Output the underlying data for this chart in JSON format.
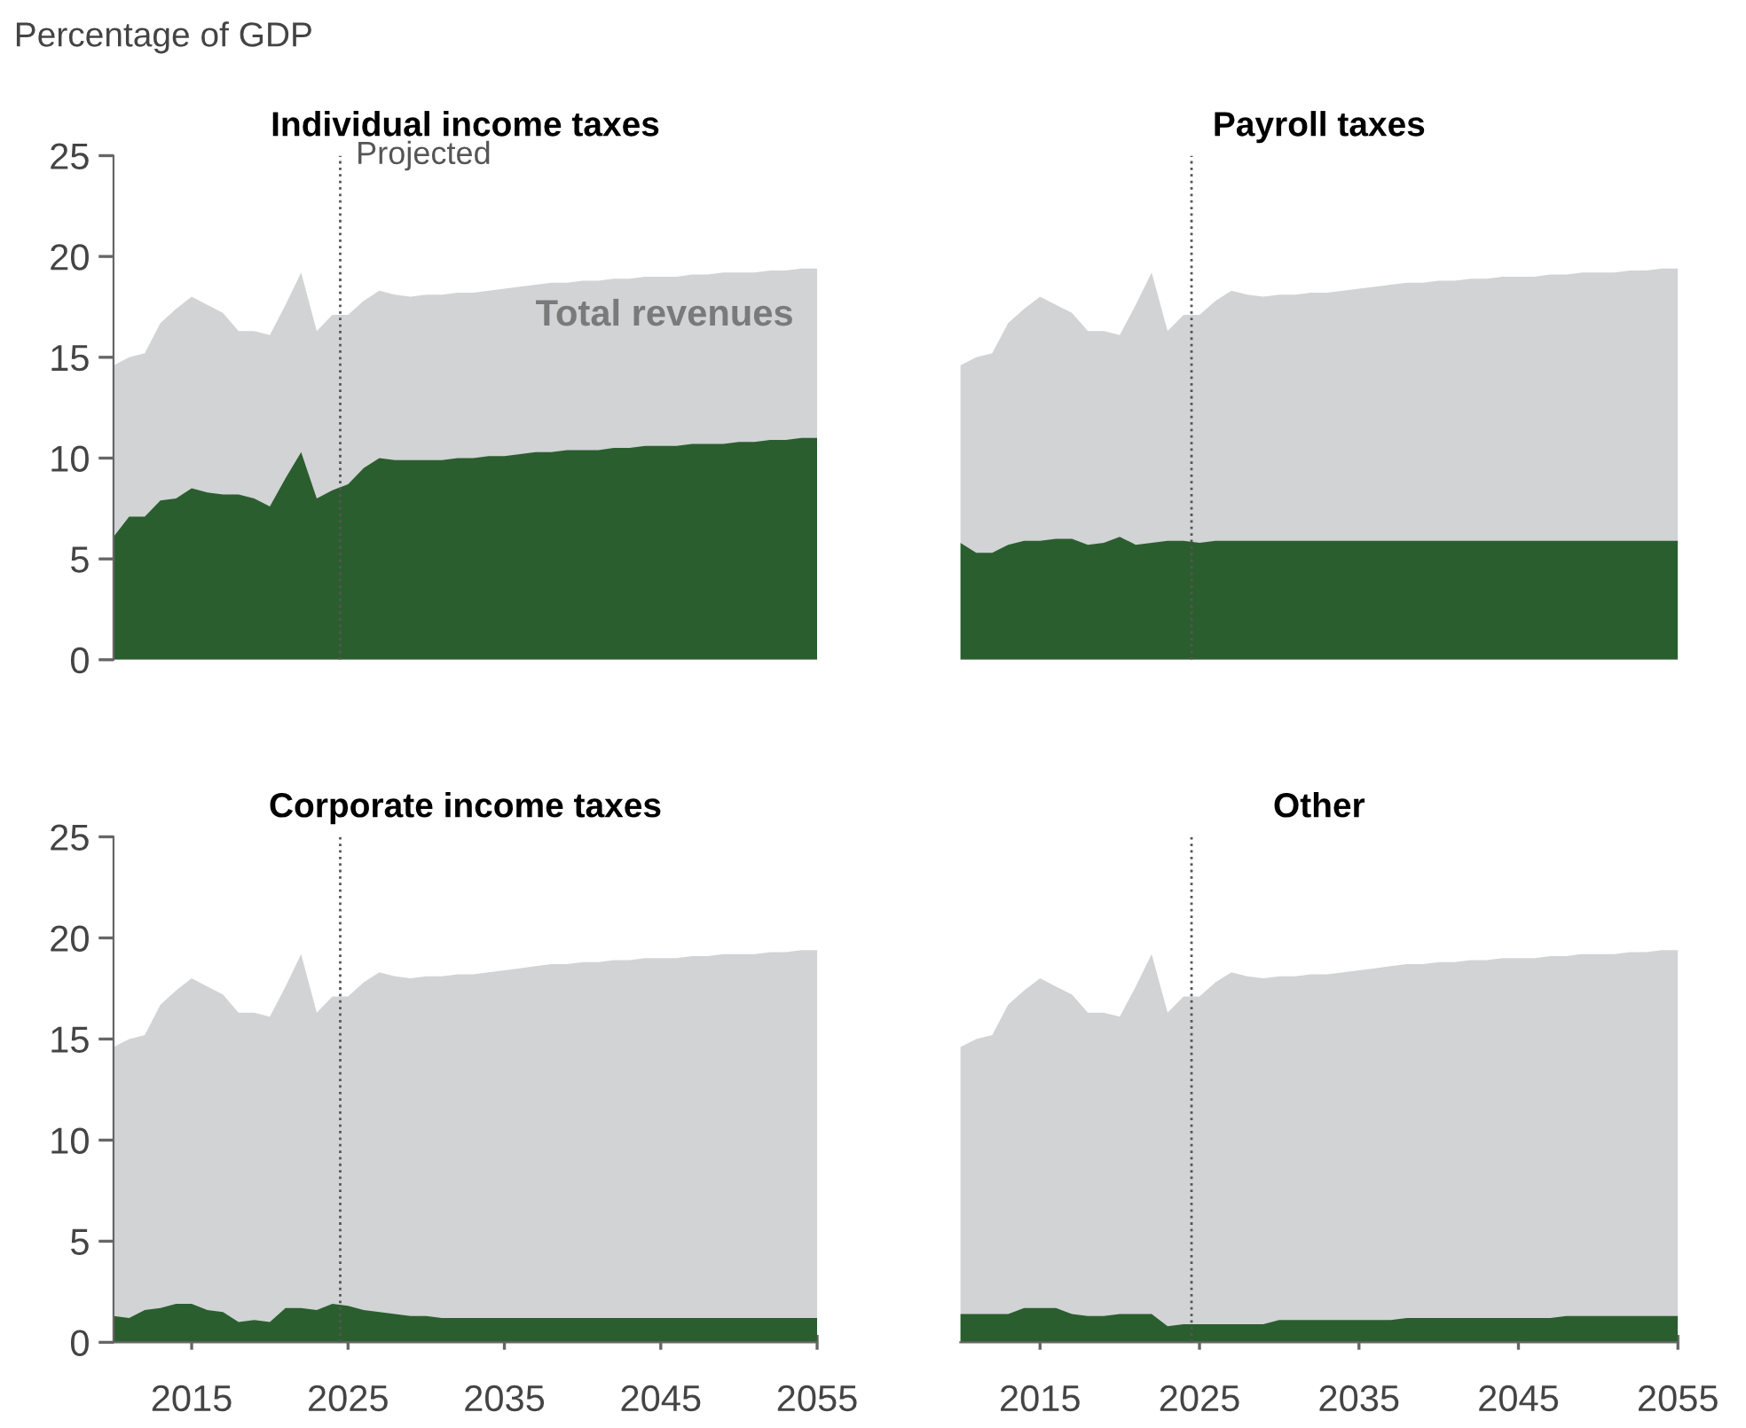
{
  "chart_data": [
    {
      "type": "area",
      "title": "Individual income taxes",
      "ylabel": "Percentage of GDP",
      "x": [
        2010,
        2011,
        2012,
        2013,
        2014,
        2015,
        2016,
        2017,
        2018,
        2019,
        2020,
        2021,
        2022,
        2023,
        2024,
        2025,
        2026,
        2027,
        2028,
        2029,
        2030,
        2031,
        2032,
        2033,
        2034,
        2035,
        2036,
        2037,
        2038,
        2039,
        2040,
        2041,
        2042,
        2043,
        2044,
        2045,
        2046,
        2047,
        2048,
        2049,
        2050,
        2051,
        2052,
        2053,
        2054,
        2055
      ],
      "series": [
        {
          "name": "Total revenues",
          "color": "#d1d3d5",
          "values": [
            14.6,
            15.0,
            15.2,
            16.7,
            17.4,
            18.0,
            17.6,
            17.2,
            16.3,
            16.3,
            16.1,
            17.6,
            19.2,
            16.3,
            17.1,
            17.1,
            17.8,
            18.3,
            18.1,
            18.0,
            18.1,
            18.1,
            18.2,
            18.2,
            18.3,
            18.4,
            18.5,
            18.6,
            18.7,
            18.7,
            18.8,
            18.8,
            18.9,
            18.9,
            19.0,
            19.0,
            19.0,
            19.1,
            19.1,
            19.2,
            19.2,
            19.2,
            19.3,
            19.3,
            19.4,
            19.4
          ]
        },
        {
          "color": "#2b5e2e",
          "values": [
            6.1,
            7.1,
            7.1,
            7.9,
            8.0,
            8.5,
            8.3,
            8.2,
            8.2,
            8.0,
            7.6,
            9.0,
            10.3,
            8.0,
            8.4,
            8.7,
            9.5,
            10.0,
            9.9,
            9.9,
            9.9,
            9.9,
            10.0,
            10.0,
            10.1,
            10.1,
            10.2,
            10.3,
            10.3,
            10.4,
            10.4,
            10.4,
            10.5,
            10.5,
            10.6,
            10.6,
            10.6,
            10.7,
            10.7,
            10.7,
            10.8,
            10.8,
            10.9,
            10.9,
            11.0,
            11.0
          ]
        }
      ],
      "xlim": [
        2010,
        2055
      ],
      "xticks": [
        2015,
        2025,
        2035,
        2045,
        2055
      ],
      "ylim": [
        0,
        25
      ],
      "yticks": [
        0,
        5,
        10,
        15,
        20,
        25
      ],
      "tick_labels": "y",
      "grid": false,
      "legend": false,
      "ref_lines": [
        {
          "axis": "x",
          "value": 2024.5,
          "label": "Projected",
          "line_style": "dotted",
          "color": "#555555"
        }
      ]
    },
    {
      "type": "area",
      "title": "Payroll taxes",
      "x": [
        2010,
        2011,
        2012,
        2013,
        2014,
        2015,
        2016,
        2017,
        2018,
        2019,
        2020,
        2021,
        2022,
        2023,
        2024,
        2025,
        2026,
        2027,
        2028,
        2029,
        2030,
        2031,
        2032,
        2033,
        2034,
        2035,
        2036,
        2037,
        2038,
        2039,
        2040,
        2041,
        2042,
        2043,
        2044,
        2045,
        2046,
        2047,
        2048,
        2049,
        2050,
        2051,
        2052,
        2053,
        2054,
        2055
      ],
      "series": [
        {
          "color": "#d1d3d5",
          "values": [
            14.6,
            15.0,
            15.2,
            16.7,
            17.4,
            18.0,
            17.6,
            17.2,
            16.3,
            16.3,
            16.1,
            17.6,
            19.2,
            16.3,
            17.1,
            17.1,
            17.8,
            18.3,
            18.1,
            18.0,
            18.1,
            18.1,
            18.2,
            18.2,
            18.3,
            18.4,
            18.5,
            18.6,
            18.7,
            18.7,
            18.8,
            18.8,
            18.9,
            18.9,
            19.0,
            19.0,
            19.0,
            19.1,
            19.1,
            19.2,
            19.2,
            19.2,
            19.3,
            19.3,
            19.4,
            19.4
          ]
        },
        {
          "color": "#2b5e2e",
          "values": [
            5.8,
            5.3,
            5.3,
            5.7,
            5.9,
            5.9,
            6.0,
            6.0,
            5.7,
            5.8,
            6.1,
            5.7,
            5.8,
            5.9,
            5.9,
            5.8,
            5.9,
            5.9,
            5.9,
            5.9,
            5.9,
            5.9,
            5.9,
            5.9,
            5.9,
            5.9,
            5.9,
            5.9,
            5.9,
            5.9,
            5.9,
            5.9,
            5.9,
            5.9,
            5.9,
            5.9,
            5.9,
            5.9,
            5.9,
            5.9,
            5.9,
            5.9,
            5.9,
            5.9,
            5.9,
            5.9
          ]
        }
      ],
      "xlim": [
        2010,
        2055
      ],
      "xticks": [
        2015,
        2025,
        2035,
        2045,
        2055
      ],
      "ylim": [
        0,
        25
      ],
      "yticks": [
        0,
        5,
        10,
        15,
        20,
        25
      ],
      "tick_labels": false,
      "grid": false,
      "legend": false,
      "ref_lines": [
        {
          "axis": "x",
          "value": 2024.5,
          "line_style": "dotted",
          "color": "#555555"
        }
      ]
    },
    {
      "type": "area",
      "title": "Corporate income taxes",
      "x": [
        2010,
        2011,
        2012,
        2013,
        2014,
        2015,
        2016,
        2017,
        2018,
        2019,
        2020,
        2021,
        2022,
        2023,
        2024,
        2025,
        2026,
        2027,
        2028,
        2029,
        2030,
        2031,
        2032,
        2033,
        2034,
        2035,
        2036,
        2037,
        2038,
        2039,
        2040,
        2041,
        2042,
        2043,
        2044,
        2045,
        2046,
        2047,
        2048,
        2049,
        2050,
        2051,
        2052,
        2053,
        2054,
        2055
      ],
      "series": [
        {
          "color": "#d1d3d5",
          "values": [
            14.6,
            15.0,
            15.2,
            16.7,
            17.4,
            18.0,
            17.6,
            17.2,
            16.3,
            16.3,
            16.1,
            17.6,
            19.2,
            16.3,
            17.1,
            17.1,
            17.8,
            18.3,
            18.1,
            18.0,
            18.1,
            18.1,
            18.2,
            18.2,
            18.3,
            18.4,
            18.5,
            18.6,
            18.7,
            18.7,
            18.8,
            18.8,
            18.9,
            18.9,
            19.0,
            19.0,
            19.0,
            19.1,
            19.1,
            19.2,
            19.2,
            19.2,
            19.3,
            19.3,
            19.4,
            19.4
          ]
        },
        {
          "color": "#2b5e2e",
          "values": [
            1.3,
            1.2,
            1.6,
            1.7,
            1.9,
            1.9,
            1.6,
            1.5,
            1.0,
            1.1,
            1.0,
            1.7,
            1.7,
            1.6,
            1.9,
            1.8,
            1.6,
            1.5,
            1.4,
            1.3,
            1.3,
            1.2,
            1.2,
            1.2,
            1.2,
            1.2,
            1.2,
            1.2,
            1.2,
            1.2,
            1.2,
            1.2,
            1.2,
            1.2,
            1.2,
            1.2,
            1.2,
            1.2,
            1.2,
            1.2,
            1.2,
            1.2,
            1.2,
            1.2,
            1.2,
            1.2
          ]
        }
      ],
      "xlim": [
        2010,
        2055
      ],
      "xticks": [
        2015,
        2025,
        2035,
        2045,
        2055
      ],
      "ylim": [
        0,
        25
      ],
      "yticks": [
        0,
        5,
        10,
        15,
        20,
        25
      ],
      "grid": false,
      "legend": false,
      "ref_lines": [
        {
          "axis": "x",
          "value": 2024.5,
          "line_style": "dotted",
          "color": "#555555"
        }
      ]
    },
    {
      "type": "area",
      "title": "Other",
      "x": [
        2010,
        2011,
        2012,
        2013,
        2014,
        2015,
        2016,
        2017,
        2018,
        2019,
        2020,
        2021,
        2022,
        2023,
        2024,
        2025,
        2026,
        2027,
        2028,
        2029,
        2030,
        2031,
        2032,
        2033,
        2034,
        2035,
        2036,
        2037,
        2038,
        2039,
        2040,
        2041,
        2042,
        2043,
        2044,
        2045,
        2046,
        2047,
        2048,
        2049,
        2050,
        2051,
        2052,
        2053,
        2054,
        2055
      ],
      "series": [
        {
          "color": "#d1d3d5",
          "values": [
            14.6,
            15.0,
            15.2,
            16.7,
            17.4,
            18.0,
            17.6,
            17.2,
            16.3,
            16.3,
            16.1,
            17.6,
            19.2,
            16.3,
            17.1,
            17.1,
            17.8,
            18.3,
            18.1,
            18.0,
            18.1,
            18.1,
            18.2,
            18.2,
            18.3,
            18.4,
            18.5,
            18.6,
            18.7,
            18.7,
            18.8,
            18.8,
            18.9,
            18.9,
            19.0,
            19.0,
            19.0,
            19.1,
            19.1,
            19.2,
            19.2,
            19.2,
            19.3,
            19.3,
            19.4,
            19.4
          ]
        },
        {
          "color": "#2b5e2e",
          "values": [
            1.4,
            1.4,
            1.4,
            1.4,
            1.7,
            1.7,
            1.7,
            1.4,
            1.3,
            1.3,
            1.4,
            1.4,
            1.4,
            0.8,
            0.9,
            0.9,
            0.9,
            0.9,
            0.9,
            0.9,
            1.1,
            1.1,
            1.1,
            1.1,
            1.1,
            1.1,
            1.1,
            1.1,
            1.2,
            1.2,
            1.2,
            1.2,
            1.2,
            1.2,
            1.2,
            1.2,
            1.2,
            1.2,
            1.3,
            1.3,
            1.3,
            1.3,
            1.3,
            1.3,
            1.3,
            1.3
          ]
        }
      ],
      "xlim": [
        2010,
        2055
      ],
      "xticks": [
        2015,
        2025,
        2035,
        2045,
        2055
      ],
      "ylim": [
        0,
        25
      ],
      "yticks": [
        0,
        5,
        10,
        15,
        20,
        25
      ],
      "tick_labels": "x",
      "grid": false,
      "legend": false,
      "ref_lines": [
        {
          "axis": "x",
          "value": 2024.5,
          "line_style": "dotted",
          "color": "#555555"
        }
      ]
    }
  ]
}
